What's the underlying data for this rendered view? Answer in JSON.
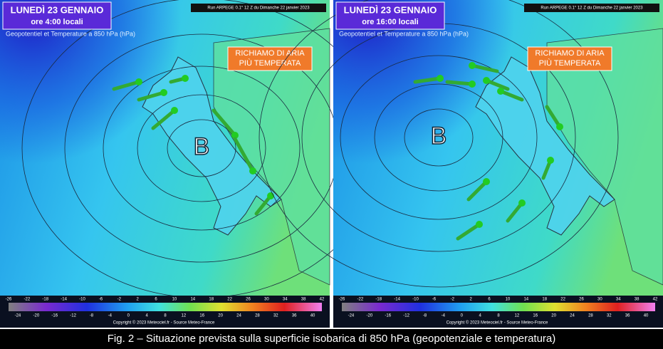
{
  "panels": [
    {
      "title": "LUNEDÌ 23 GENNAIO",
      "time": "ore 4:00 locali",
      "run": "Run ARPEGE 0.1° 12 Z du Dimanche 22 janvier 2023",
      "product": "Geopotentiel et Temperature a 850 hPa (hPa)",
      "annotation": [
        "RICHIAMO DI ARIA",
        "PIÙ TEMPERATA"
      ],
      "low": "B",
      "copyright": "Copyright © 2023 Meteociel.fr - Source Meteo-France"
    },
    {
      "title": "LUNEDÌ 23 GENNAIO",
      "time": "ore 16:00 locali",
      "run": "Run ARPEGE 0.1° 12 Z du Dimanche 22 janvier 2023",
      "product": "Geopotentiel et Temperature a 850 hPa (hPa)",
      "annotation": [
        "RICHIAMO DI ARIA",
        "PIÙ TEMPERATA"
      ],
      "low": "B",
      "copyright": "Copyright © 2023 Meteociel.fr - Source Meteo-France"
    }
  ],
  "colorbar": {
    "top": [
      -26,
      -22,
      -18,
      -14,
      -10,
      -6,
      -2,
      2,
      6,
      10,
      14,
      18,
      22,
      26,
      30,
      34,
      38,
      42
    ],
    "bottom": [
      -24,
      -20,
      -16,
      -12,
      -8,
      -4,
      0,
      4,
      8,
      12,
      16,
      20,
      24,
      28,
      32,
      36,
      40
    ]
  },
  "caption": "Fig. 2 – Situazione prevista sulla superficie isobarica di 850 hPa (geopotenziale e temperatura)"
}
